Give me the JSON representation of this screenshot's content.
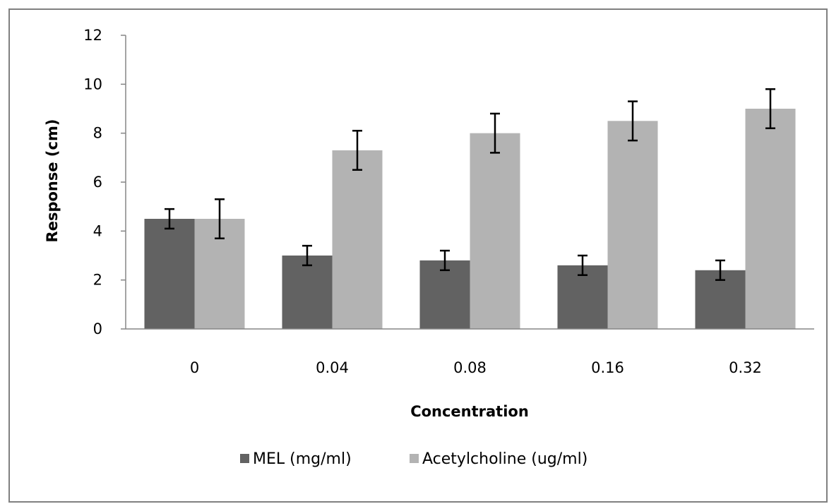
{
  "chart_data": {
    "type": "bar",
    "title": "",
    "xlabel": "Concentration",
    "ylabel": "Response (cm)",
    "categories": [
      "0",
      "0.04",
      "0.08",
      "0.16",
      "0.32"
    ],
    "ylim": [
      0,
      12
    ],
    "yticks": [
      0,
      2,
      4,
      6,
      8,
      10,
      12
    ],
    "grid": false,
    "legend_position": "bottom",
    "series": [
      {
        "name": "MEL (mg/ml)",
        "color": "#626262",
        "values": [
          4.5,
          3.0,
          2.8,
          2.6,
          2.4
        ],
        "errors": [
          0.4,
          0.4,
          0.4,
          0.4,
          0.4
        ]
      },
      {
        "name": "Acetylcholine (ug/ml)",
        "color": "#b3b3b3",
        "values": [
          4.5,
          7.3,
          8.0,
          8.5,
          9.0
        ],
        "errors": [
          0.8,
          0.8,
          0.8,
          0.8,
          0.8
        ]
      }
    ]
  }
}
